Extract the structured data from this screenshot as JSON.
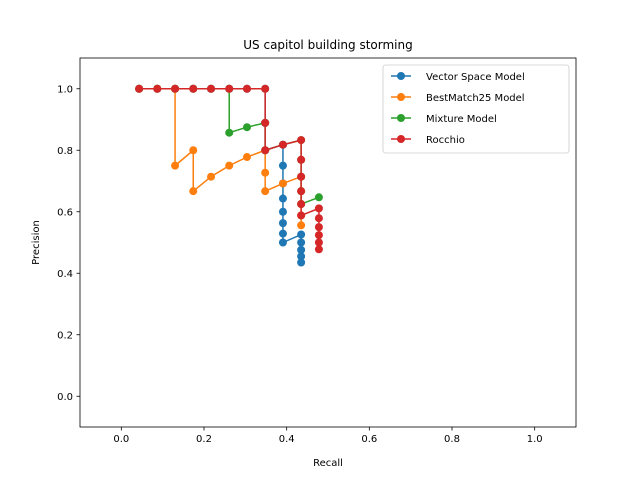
{
  "chart_data": {
    "type": "line",
    "title": "US capitol building storming",
    "xlabel": "Recall",
    "ylabel": "Precision",
    "xlim": [
      -0.1,
      1.1
    ],
    "ylim": [
      -0.1,
      1.1
    ],
    "xticks": [
      "0.0",
      "0.2",
      "0.4",
      "0.6",
      "0.8",
      "1.0"
    ],
    "yticks": [
      "0.0",
      "0.2",
      "0.4",
      "0.6",
      "0.8",
      "1.0"
    ],
    "grid": false,
    "legend_position": "top-right",
    "series": [
      {
        "name": "Vector Space Model",
        "color": "#1f77b4",
        "marker": "circle",
        "points": [
          [
            0.043,
            1.0
          ],
          [
            0.087,
            1.0
          ],
          [
            0.13,
            1.0
          ],
          [
            0.174,
            1.0
          ],
          [
            0.217,
            1.0
          ],
          [
            0.261,
            1.0
          ],
          [
            0.304,
            1.0
          ],
          [
            0.348,
            1.0
          ],
          [
            0.348,
            0.889
          ],
          [
            0.348,
            0.8
          ],
          [
            0.391,
            0.818
          ],
          [
            0.391,
            0.75
          ],
          [
            0.391,
            0.692
          ],
          [
            0.391,
            0.643
          ],
          [
            0.391,
            0.6
          ],
          [
            0.391,
            0.563
          ],
          [
            0.391,
            0.529
          ],
          [
            0.391,
            0.5
          ],
          [
            0.435,
            0.526
          ],
          [
            0.435,
            0.5
          ],
          [
            0.435,
            0.476
          ],
          [
            0.435,
            0.455
          ],
          [
            0.435,
            0.435
          ]
        ]
      },
      {
        "name": "BestMatch25 Model",
        "color": "#ff7f0e",
        "marker": "circle",
        "points": [
          [
            0.043,
            1.0
          ],
          [
            0.087,
            1.0
          ],
          [
            0.13,
            1.0
          ],
          [
            0.13,
            0.75
          ],
          [
            0.174,
            0.8
          ],
          [
            0.174,
            0.667
          ],
          [
            0.217,
            0.714
          ],
          [
            0.261,
            0.75
          ],
          [
            0.304,
            0.778
          ],
          [
            0.348,
            0.8
          ],
          [
            0.348,
            0.727
          ],
          [
            0.348,
            0.667
          ],
          [
            0.391,
            0.692
          ],
          [
            0.435,
            0.714
          ],
          [
            0.435,
            0.667
          ],
          [
            0.435,
            0.625
          ],
          [
            0.435,
            0.588
          ],
          [
            0.435,
            0.556
          ]
        ]
      },
      {
        "name": "Mixture Model",
        "color": "#2ca02c",
        "marker": "circle",
        "points": [
          [
            0.043,
            1.0
          ],
          [
            0.087,
            1.0
          ],
          [
            0.13,
            1.0
          ],
          [
            0.174,
            1.0
          ],
          [
            0.217,
            1.0
          ],
          [
            0.261,
            1.0
          ],
          [
            0.261,
            0.857
          ],
          [
            0.304,
            0.875
          ],
          [
            0.348,
            0.889
          ],
          [
            0.348,
            0.8
          ],
          [
            0.391,
            0.818
          ],
          [
            0.435,
            0.833
          ],
          [
            0.435,
            0.769
          ],
          [
            0.435,
            0.714
          ],
          [
            0.435,
            0.667
          ],
          [
            0.435,
            0.625
          ],
          [
            0.478,
            0.647
          ]
        ]
      },
      {
        "name": "Rocchio",
        "color": "#d62728",
        "marker": "circle",
        "points": [
          [
            0.043,
            1.0
          ],
          [
            0.087,
            1.0
          ],
          [
            0.13,
            1.0
          ],
          [
            0.174,
            1.0
          ],
          [
            0.217,
            1.0
          ],
          [
            0.261,
            1.0
          ],
          [
            0.304,
            1.0
          ],
          [
            0.348,
            1.0
          ],
          [
            0.348,
            0.889
          ],
          [
            0.348,
            0.8
          ],
          [
            0.391,
            0.818
          ],
          [
            0.435,
            0.833
          ],
          [
            0.435,
            0.769
          ],
          [
            0.435,
            0.714
          ],
          [
            0.435,
            0.667
          ],
          [
            0.435,
            0.625
          ],
          [
            0.435,
            0.588
          ],
          [
            0.478,
            0.611
          ],
          [
            0.478,
            0.579
          ],
          [
            0.478,
            0.55
          ],
          [
            0.478,
            0.524
          ],
          [
            0.478,
            0.5
          ],
          [
            0.478,
            0.478
          ]
        ]
      }
    ]
  }
}
